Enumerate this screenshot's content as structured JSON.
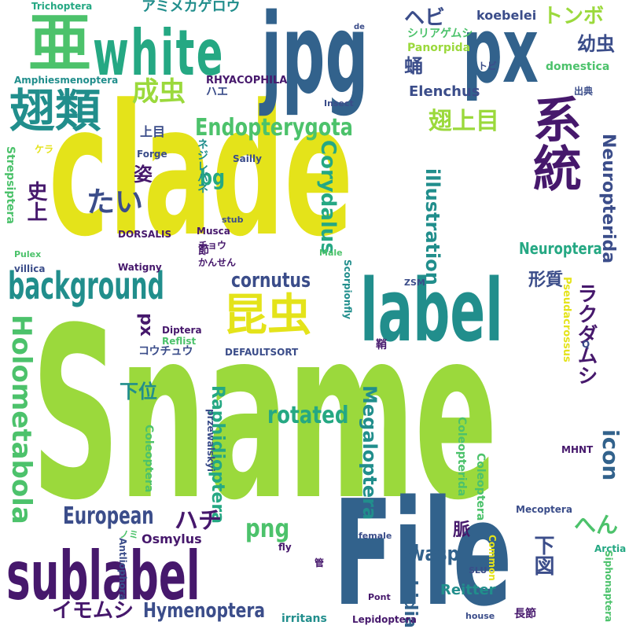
{
  "palette": {
    "dark_purple": "#46186c",
    "indigo": "#3b4d8a",
    "blue": "#32628c",
    "teal": "#218e8c",
    "sea_green": "#25a883",
    "green": "#4cc26b",
    "lime": "#9bd93c",
    "yellow": "#e4e31a"
  },
  "words": [
    {
      "text": "Sname",
      "color": "#9bd93c"
    },
    {
      "text": "clade",
      "color": "#e4e31a"
    },
    {
      "text": "File",
      "color": "#32628c"
    },
    {
      "text": "jpg",
      "color": "#32628c"
    },
    {
      "text": "px",
      "color": "#32628c"
    },
    {
      "text": "white",
      "color": "#25a883"
    },
    {
      "text": "亜",
      "color": "#4cc26b"
    },
    {
      "text": "翅類",
      "color": "#218e8c"
    },
    {
      "text": "系統",
      "color": "#46186c"
    },
    {
      "text": "label",
      "color": "#218e8c"
    },
    {
      "text": "sublabel",
      "color": "#46186c"
    },
    {
      "text": "background",
      "color": "#218e8c"
    },
    {
      "text": "昆虫",
      "color": "#e4e31a"
    },
    {
      "text": "Holometabola",
      "color": "#4cc26b"
    },
    {
      "text": "Endopterygota",
      "color": "#4cc26b"
    },
    {
      "text": "翅上目",
      "color": "#9bd93c"
    },
    {
      "text": "Raphidioptera",
      "color": "#25a883"
    },
    {
      "text": "Megaloptera",
      "color": "#218e8c"
    },
    {
      "text": "rotated",
      "color": "#25a883"
    },
    {
      "text": "Hymenoptera",
      "color": "#3b4d8a"
    },
    {
      "text": "Neuropterida",
      "color": "#3b4d8a"
    },
    {
      "text": "illustration",
      "color": "#218e8c"
    },
    {
      "text": "Corydalus",
      "color": "#25a883"
    },
    {
      "text": "cornutus",
      "color": "#3b4d8a"
    },
    {
      "text": "European",
      "color": "#3b4d8a"
    },
    {
      "text": "成虫",
      "color": "#9bd93c"
    },
    {
      "text": "幼虫",
      "color": "#3b4d8a"
    },
    {
      "text": "トンボ",
      "color": "#9bd93c"
    },
    {
      "text": "たい",
      "color": "#3b4d8a"
    },
    {
      "text": "ハチ",
      "color": "#46186c"
    },
    {
      "text": "ラクダムシ",
      "color": "#46186c"
    },
    {
      "text": "イモムシ",
      "color": "#46186c"
    },
    {
      "text": "Raphidia",
      "color": "#32628c"
    },
    {
      "text": "wasp",
      "color": "#32628c"
    },
    {
      "text": "icon",
      "color": "#32628c"
    },
    {
      "text": "png",
      "color": "#4cc26b"
    },
    {
      "text": "ヘビ",
      "color": "#3b4d8a"
    },
    {
      "text": "蛹",
      "color": "#3b4d8a"
    },
    {
      "text": "px",
      "color": "#46186c"
    },
    {
      "text": "Neuroptera",
      "color": "#25a883"
    },
    {
      "text": "下図",
      "color": "#3b4d8a"
    },
    {
      "text": "へん",
      "color": "#4cc26b"
    },
    {
      "text": "脈",
      "color": "#46186c"
    },
    {
      "text": "姿",
      "color": "#46186c"
    },
    {
      "text": "形質",
      "color": "#3b4d8a"
    },
    {
      "text": "下位",
      "color": "#218e8c"
    },
    {
      "text": "史上",
      "color": "#46186c"
    },
    {
      "text": "bg",
      "color": "#25a883"
    },
    {
      "text": "Reitter",
      "color": "#218e8c"
    },
    {
      "text": "Elenchus",
      "color": "#3b4d8a"
    },
    {
      "text": "koebelei",
      "color": "#3b4d8a"
    },
    {
      "text": "Trichoptera",
      "color": "#25a883"
    },
    {
      "text": "アミメカゲロウ",
      "color": "#218e8c"
    },
    {
      "text": "Amphiesmenoptera",
      "color": "#218e8c"
    },
    {
      "text": "RHYACOPHILA",
      "color": "#46186c"
    },
    {
      "text": "ハエ",
      "color": "#3b4d8a"
    },
    {
      "text": "Insect",
      "color": "#3b4d8a"
    },
    {
      "text": "シリアゲムシ",
      "color": "#4cc26b"
    },
    {
      "text": "Panorpida",
      "color": "#9bd93c"
    },
    {
      "text": "トビ",
      "color": "#3b4d8a"
    },
    {
      "text": "domestica",
      "color": "#4cc26b"
    },
    {
      "text": "出典",
      "color": "#3b4d8a"
    },
    {
      "text": "上目",
      "color": "#3b4d8a"
    },
    {
      "text": "Forge",
      "color": "#3b4d8a"
    },
    {
      "text": "ケラ",
      "color": "#e4e31a"
    },
    {
      "text": "Strepsiptera",
      "color": "#4cc26b"
    },
    {
      "text": "ネジレバネ",
      "color": "#218e8c"
    },
    {
      "text": "Sailly",
      "color": "#3b4d8a"
    },
    {
      "text": "stub",
      "color": "#3b4d8a"
    },
    {
      "text": "Musca",
      "color": "#46186c"
    },
    {
      "text": "DORSALIS",
      "color": "#46186c"
    },
    {
      "text": "Pulex",
      "color": "#4cc26b"
    },
    {
      "text": "節",
      "color": "#46186c"
    },
    {
      "text": "チョウ",
      "color": "#46186c"
    },
    {
      "text": "Male",
      "color": "#4cc26b"
    },
    {
      "text": "villica",
      "color": "#3b4d8a"
    },
    {
      "text": "Watigny",
      "color": "#46186c"
    },
    {
      "text": "かんせん",
      "color": "#46186c"
    },
    {
      "text": "Scorpionfly",
      "color": "#218e8c"
    },
    {
      "text": "ZSM",
      "color": "#3b4d8a"
    },
    {
      "text": "Pseudacrossus",
      "color": "#e4e31a"
    },
    {
      "text": "Diptera",
      "color": "#46186c"
    },
    {
      "text": "Reflist",
      "color": "#4cc26b"
    },
    {
      "text": "コウチュウ",
      "color": "#3b4d8a"
    },
    {
      "text": "DEFAULTSORT",
      "color": "#3b4d8a"
    },
    {
      "text": "鞘",
      "color": "#46186c"
    },
    {
      "text": "Q",
      "color": "#3b4d8a"
    },
    {
      "text": "przewalskyi",
      "color": "#3b4d8a"
    },
    {
      "text": "Coleoptera",
      "color": "#4cc26b"
    },
    {
      "text": "Coleopterida",
      "color": "#4cc26b"
    },
    {
      "text": "MHNT",
      "color": "#46186c"
    },
    {
      "text": "Coleoptera",
      "color": "#4cc26b"
    },
    {
      "text": "Mecoptera",
      "color": "#3b4d8a"
    },
    {
      "text": "Arctia",
      "color": "#25a883"
    },
    {
      "text": "Osmylus",
      "color": "#46186c"
    },
    {
      "text": "ノミ",
      "color": "#4cc26b"
    },
    {
      "text": "Antliophora",
      "color": "#3b4d8a"
    },
    {
      "text": "fly",
      "color": "#46186c"
    },
    {
      "text": "female",
      "color": "#3b4d8a"
    },
    {
      "text": "Common",
      "color": "#e4e31a"
    },
    {
      "text": "SLU",
      "color": "#3b4d8a"
    },
    {
      "text": "管",
      "color": "#46186c"
    },
    {
      "text": "Siphonaptera",
      "color": "#4cc26b"
    },
    {
      "text": "Pont",
      "color": "#46186c"
    },
    {
      "text": "Lepidoptera",
      "color": "#46186c"
    },
    {
      "text": "irritans",
      "color": "#218e8c"
    },
    {
      "text": "house",
      "color": "#3b4d8a"
    },
    {
      "text": "長節",
      "color": "#46186c"
    },
    {
      "text": "de",
      "color": "#3b4d8a"
    }
  ]
}
